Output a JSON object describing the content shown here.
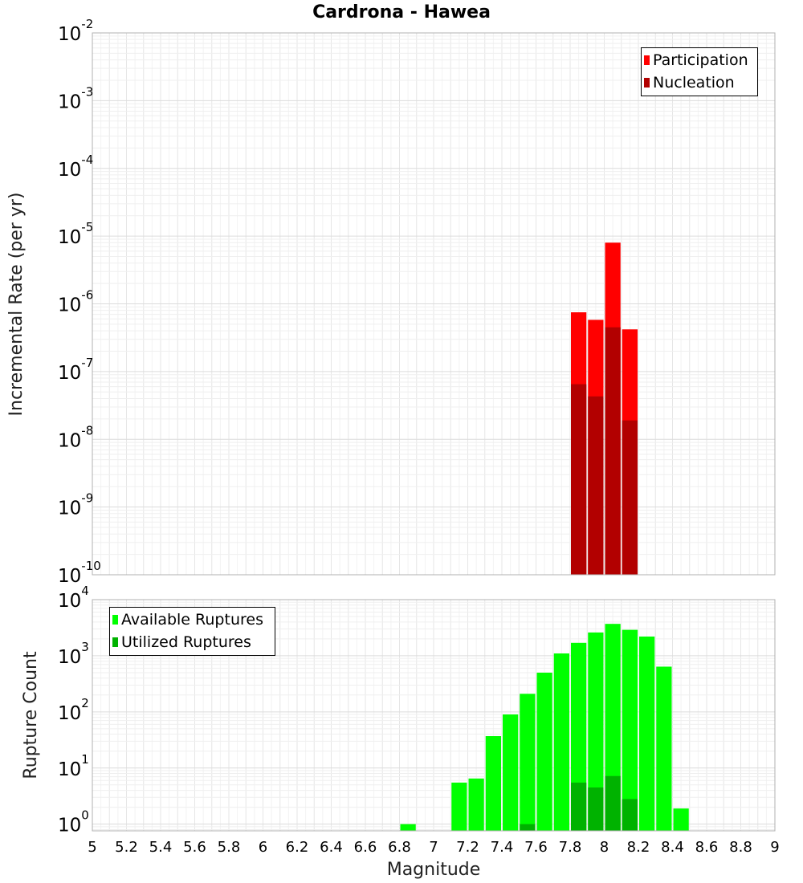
{
  "colors": {
    "participation": "#ff0000",
    "nucleation": "#b20000",
    "available": "#00ff00",
    "utilized": "#00b200"
  },
  "chart_data": [
    {
      "type": "bar",
      "title": "Cardrona - Hawea",
      "xlabel": "",
      "ylabel": "Incremental Rate (per yr)",
      "yscale": "log",
      "xlim": [
        5,
        9
      ],
      "ylim": [
        1e-10,
        0.01
      ],
      "bin_width": 0.1,
      "ytick_labels": [
        {
          "base": "10",
          "exp": "-10",
          "value": 1e-10
        },
        {
          "base": "10",
          "exp": "-9",
          "value": 1e-09
        },
        {
          "base": "10",
          "exp": "-8",
          "value": 1e-08
        },
        {
          "base": "10",
          "exp": "-7",
          "value": 1e-07
        },
        {
          "base": "10",
          "exp": "-6",
          "value": 1e-06
        },
        {
          "base": "10",
          "exp": "-5",
          "value": 1e-05
        },
        {
          "base": "10",
          "exp": "-4",
          "value": 0.0001
        },
        {
          "base": "10",
          "exp": "-3",
          "value": 0.001
        },
        {
          "base": "10",
          "exp": "-2",
          "value": 0.01
        }
      ],
      "legend": {
        "placement": "top-right",
        "entries": [
          "Participation",
          "Nucleation"
        ]
      },
      "series": [
        {
          "name": "Participation",
          "x": [
            7.85,
            7.95,
            8.05,
            8.15
          ],
          "values": [
            7.5e-07,
            5.8e-07,
            8e-06,
            4.2e-07
          ]
        },
        {
          "name": "Nucleation",
          "x": [
            7.85,
            7.95,
            8.05,
            8.15
          ],
          "values": [
            6.5e-08,
            4.3e-08,
            4.5e-07,
            1.9e-08
          ]
        }
      ]
    },
    {
      "type": "bar",
      "title": "",
      "xlabel": "Magnitude",
      "ylabel": "Rupture Count",
      "yscale": "log",
      "xlim": [
        5,
        9
      ],
      "ylim": [
        0.76,
        10000
      ],
      "bin_width": 0.1,
      "xtick_labels": [
        "5",
        "5.2",
        "5.4",
        "5.6",
        "5.8",
        "6",
        "6.2",
        "6.4",
        "6.6",
        "6.8",
        "7",
        "7.2",
        "7.4",
        "7.6",
        "7.8",
        "8",
        "8.2",
        "8.4",
        "8.6",
        "8.8",
        "9"
      ],
      "ytick_labels": [
        {
          "base": "10",
          "exp": "0",
          "value": 1
        },
        {
          "base": "10",
          "exp": "1",
          "value": 10
        },
        {
          "base": "10",
          "exp": "2",
          "value": 100
        },
        {
          "base": "10",
          "exp": "3",
          "value": 1000
        },
        {
          "base": "10",
          "exp": "4",
          "value": 10000
        }
      ],
      "legend": {
        "placement": "top-left",
        "entries": [
          "Available Ruptures",
          "Utilized Ruptures"
        ]
      },
      "series": [
        {
          "name": "Available Ruptures",
          "x": [
            6.85,
            7.15,
            7.25,
            7.35,
            7.45,
            7.55,
            7.65,
            7.75,
            7.85,
            7.95,
            8.05,
            8.15,
            8.25,
            8.35,
            8.45
          ],
          "values": [
            1,
            5.5,
            6.5,
            37,
            90,
            210,
            500,
            1100,
            1700,
            2600,
            3700,
            2900,
            2200,
            640,
            1.9
          ]
        },
        {
          "name": "Utilized Ruptures",
          "x": [
            7.55,
            7.85,
            7.95,
            8.05,
            8.15
          ],
          "values": [
            1,
            5.5,
            4.5,
            7.2,
            2.8
          ]
        }
      ]
    }
  ]
}
